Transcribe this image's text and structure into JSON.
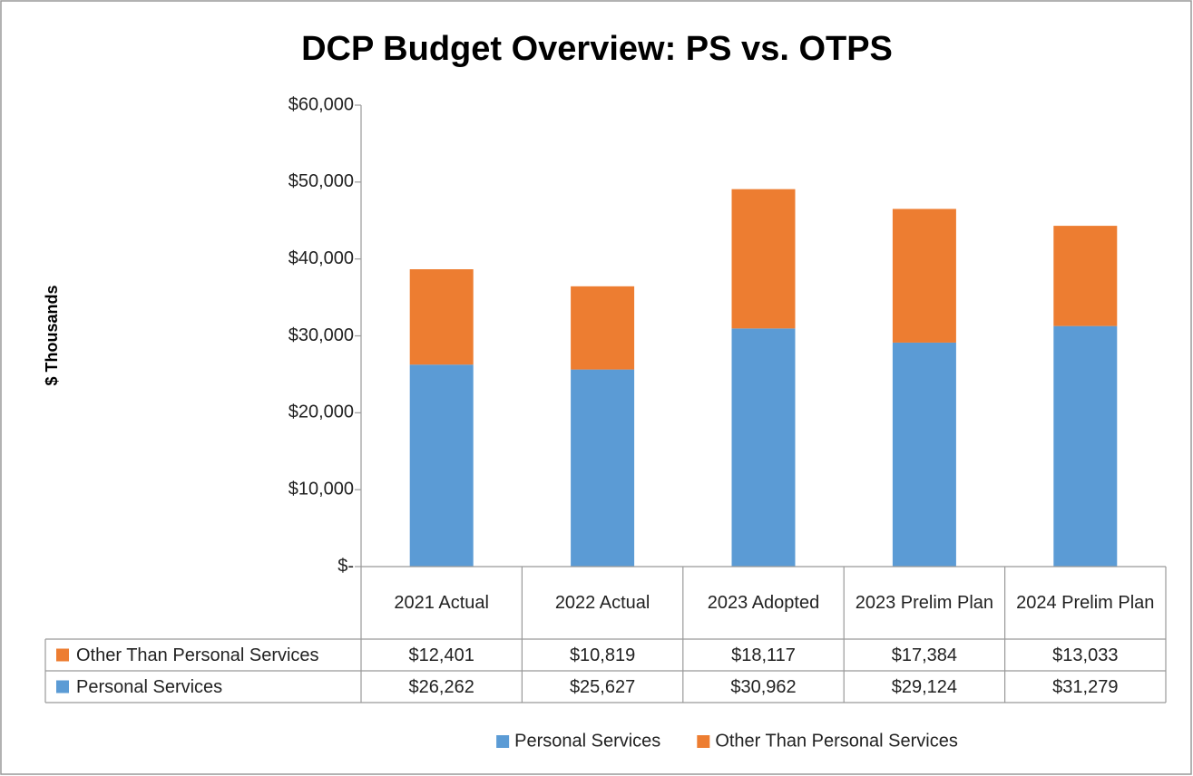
{
  "chart_data": {
    "type": "stacked_bar",
    "title": "DCP Budget Overview: PS vs. OTPS",
    "y_label": "$ Thousands",
    "categories": [
      "2021 Actual",
      "2022 Actual",
      "2023 Adopted",
      "2023 Prelim Plan",
      "2024 Prelim Plan"
    ],
    "series": [
      {
        "name": "Personal Services",
        "color": "#5b9bd5",
        "values": [
          26262,
          25627,
          30962,
          29124,
          31279
        ],
        "value_labels": [
          "$26,262",
          "$25,627",
          "$30,962",
          "$29,124",
          "$31,279"
        ]
      },
      {
        "name": "Other Than Personal Services",
        "color": "#ed7d31",
        "values": [
          12401,
          10819,
          18117,
          17384,
          13033
        ],
        "value_labels": [
          "$12,401",
          "$10,819",
          "$18,117",
          "$17,384",
          "$13,033"
        ]
      }
    ],
    "ylim": [
      0,
      60000
    ],
    "yticks": [
      {
        "value": 0,
        "label": "$-"
      },
      {
        "value": 10000,
        "label": "$10,000"
      },
      {
        "value": 20000,
        "label": "$20,000"
      },
      {
        "value": 30000,
        "label": "$30,000"
      },
      {
        "value": 40000,
        "label": "$40,000"
      },
      {
        "value": 50000,
        "label": "$50,000"
      },
      {
        "value": 60000,
        "label": "$60,000"
      }
    ],
    "legend": "bottom"
  }
}
